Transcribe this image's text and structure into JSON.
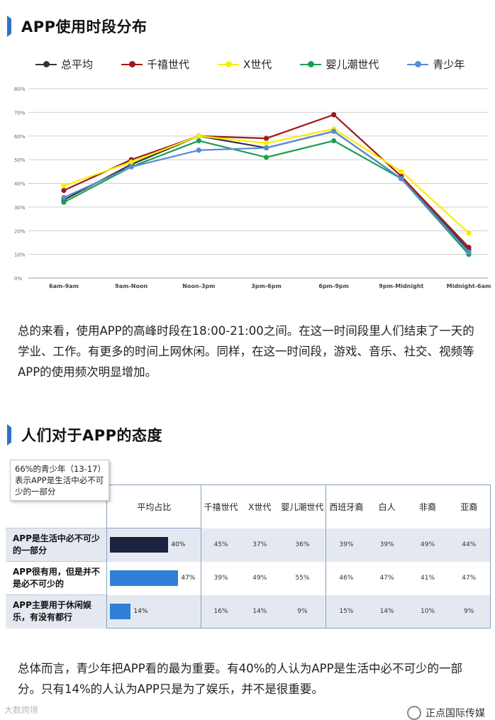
{
  "section1": {
    "title": "APP使用时段分布"
  },
  "chart_data": {
    "type": "line",
    "categories": [
      "6am-9am",
      "9am-Noon",
      "Noon-3pm",
      "3pm-6pm",
      "6pm-9pm",
      "9pm-Midnight",
      "Midnight-6am"
    ],
    "ylim": [
      0,
      80
    ],
    "yticks": [
      "0%",
      "10%",
      "20%",
      "30%",
      "40%",
      "50%",
      "60%",
      "70%",
      "80%"
    ],
    "grid": true,
    "legend_position": "top",
    "series": [
      {
        "name": "总平均",
        "color": "#333333",
        "values": [
          33,
          48,
          60,
          55,
          62,
          42,
          12
        ]
      },
      {
        "name": "千禧世代",
        "color": "#a01818",
        "values": [
          37,
          50,
          60,
          59,
          69,
          43,
          13
        ]
      },
      {
        "name": "X世代",
        "color": "#f5f000",
        "values": [
          39,
          49,
          60,
          57,
          63,
          45,
          19
        ]
      },
      {
        "name": "婴儿潮世代",
        "color": "#1aa050",
        "values": [
          32,
          47,
          58,
          51,
          58,
          42,
          10
        ]
      },
      {
        "name": "青少年",
        "color": "#5b8ad6",
        "values": [
          34,
          47,
          54,
          55,
          62,
          42,
          11
        ]
      }
    ]
  },
  "para1": "总的来看，使用APP的高峰时段在18:00-21:00之间。在这一时间段里人们结束了一天的学业、工作。有更多的时间上网休闲。同样，在这一时间段，游戏、音乐、社交、视频等APP的使用频次明显增加。",
  "section2": {
    "title": "人们对于APP的态度"
  },
  "tooltip": "66%的青少年（13-17）表示APP是生活中必不可少的一部分",
  "table": {
    "headers": [
      "平均占比",
      "千禧世代",
      "X世代",
      "婴儿潮世代",
      "西班牙裔",
      "白人",
      "非裔",
      "亚裔"
    ],
    "rows": [
      {
        "label": "APP是生活中必不可少的一部分",
        "avg": "40%",
        "avg_value": 40,
        "color": "#1c2340",
        "cells": [
          "45%",
          "37%",
          "36%",
          "39%",
          "39%",
          "49%",
          "44%"
        ]
      },
      {
        "label": "APP很有用，但是并不是必不可少的",
        "avg": "47%",
        "avg_value": 47,
        "color": "#2e7fd6",
        "cells": [
          "39%",
          "49%",
          "55%",
          "46%",
          "47%",
          "41%",
          "47%"
        ]
      },
      {
        "label": "APP主要用于休闲娱乐，有没有都行",
        "avg": "14%",
        "avg_value": 14,
        "color": "#2e7fd6",
        "cells": [
          "16%",
          "14%",
          "9%",
          "15%",
          "14%",
          "10%",
          "9%"
        ]
      }
    ]
  },
  "para2": "总体而言，青少年把APP看的最为重要。有40%的人认为APP是生活中必不可少的一部分。只有14%的人认为APP只是为了娱乐，并不是很重要。",
  "watermark_left": "大数跨境",
  "watermark_right": "正点国际传媒"
}
